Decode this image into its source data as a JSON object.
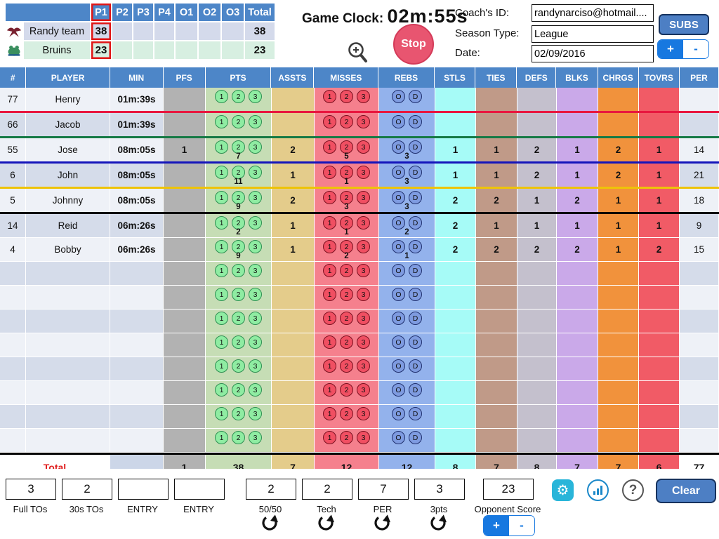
{
  "scoreboard": {
    "period_headers": [
      "P1",
      "P2",
      "P3",
      "P4",
      "O1",
      "O2",
      "O3",
      "Total"
    ],
    "active_period": "P1",
    "teams": [
      {
        "name": "Randy team",
        "icon": "eagle-icon",
        "scores": [
          "38",
          "",
          "",
          "",
          "",
          "",
          "",
          "38"
        ]
      },
      {
        "name": "Bruins",
        "icon": "bruins-icon",
        "scores": [
          "23",
          "",
          "",
          "",
          "",
          "",
          "",
          "23"
        ]
      }
    ]
  },
  "clock": {
    "label": "Game Clock:",
    "time": "02m:55s",
    "stop_label": "Stop"
  },
  "coach_panel": {
    "coach_id_label": "Coach's ID:",
    "coach_id_value": "randynarciso@hotmail....",
    "season_type_label": "Season Type:",
    "season_type_value": "League",
    "date_label": "Date:",
    "date_value": "02/09/2016",
    "subs_label": "SUBS",
    "plus": "+",
    "minus": "-"
  },
  "stats_table": {
    "columns": [
      "#",
      "PLAYER",
      "MIN",
      "PFS",
      "PTS",
      "ASSTS",
      "MISSES",
      "REBS",
      "STLS",
      "TIES",
      "DEFS",
      "BLKS",
      "CHRGS",
      "TOVRS",
      "PER"
    ],
    "pts_buttons": [
      "1",
      "2",
      "3"
    ],
    "misses_buttons": [
      "1",
      "2",
      "3"
    ],
    "rebs_buttons": [
      "O",
      "D"
    ],
    "rows": [
      {
        "num": "77",
        "name": "Henry",
        "min": "01m:39s",
        "pfs": "",
        "pts": "",
        "assts": "",
        "misses": "",
        "rebs": "",
        "stls": "",
        "ties": "",
        "defs": "",
        "blks": "",
        "chrgs": "",
        "tovrs": "",
        "per": "",
        "underline": "#e8173f"
      },
      {
        "num": "66",
        "name": "Jacob",
        "min": "01m:39s",
        "pfs": "",
        "pts": "",
        "assts": "",
        "misses": "",
        "rebs": "",
        "stls": "",
        "ties": "",
        "defs": "",
        "blks": "",
        "chrgs": "",
        "tovrs": "",
        "per": "",
        "underline": "#157a45"
      },
      {
        "num": "55",
        "name": "Jose",
        "min": "08m:05s",
        "pfs": "1",
        "pts": "7",
        "assts": "2",
        "misses": "5",
        "rebs": "3",
        "stls": "1",
        "ties": "1",
        "defs": "2",
        "blks": "1",
        "chrgs": "2",
        "tovrs": "1",
        "per": "14",
        "underline": "#1414bb"
      },
      {
        "num": "6",
        "name": "John",
        "min": "08m:05s",
        "pfs": "",
        "pts": "11",
        "assts": "1",
        "misses": "1",
        "rebs": "3",
        "stls": "1",
        "ties": "1",
        "defs": "2",
        "blks": "1",
        "chrgs": "2",
        "tovrs": "1",
        "per": "21",
        "underline": "#eec308"
      },
      {
        "num": "5",
        "name": "Johnny",
        "min": "08m:05s",
        "pfs": "",
        "pts": "9",
        "assts": "2",
        "misses": "3",
        "rebs": "3",
        "stls": "2",
        "ties": "2",
        "defs": "1",
        "blks": "2",
        "chrgs": "1",
        "tovrs": "1",
        "per": "18",
        "underline": "#000000"
      },
      {
        "num": "14",
        "name": "Reid",
        "min": "06m:26s",
        "pfs": "",
        "pts": "2",
        "assts": "1",
        "misses": "1",
        "rebs": "2",
        "stls": "2",
        "ties": "1",
        "defs": "1",
        "blks": "1",
        "chrgs": "1",
        "tovrs": "1",
        "per": "9",
        "underline": ""
      },
      {
        "num": "4",
        "name": "Bobby",
        "min": "06m:26s",
        "pfs": "",
        "pts": "9",
        "assts": "1",
        "misses": "2",
        "rebs": "1",
        "stls": "2",
        "ties": "2",
        "defs": "2",
        "blks": "2",
        "chrgs": "1",
        "tovrs": "2",
        "per": "15",
        "underline": ""
      },
      {
        "num": "",
        "name": "",
        "min": "",
        "pfs": "",
        "pts": "",
        "assts": "",
        "misses": "",
        "rebs": "",
        "stls": "",
        "ties": "",
        "defs": "",
        "blks": "",
        "chrgs": "",
        "tovrs": "",
        "per": "",
        "underline": ""
      },
      {
        "num": "",
        "name": "",
        "min": "",
        "pfs": "",
        "pts": "",
        "assts": "",
        "misses": "",
        "rebs": "",
        "stls": "",
        "ties": "",
        "defs": "",
        "blks": "",
        "chrgs": "",
        "tovrs": "",
        "per": "",
        "underline": ""
      },
      {
        "num": "",
        "name": "",
        "min": "",
        "pfs": "",
        "pts": "",
        "assts": "",
        "misses": "",
        "rebs": "",
        "stls": "",
        "ties": "",
        "defs": "",
        "blks": "",
        "chrgs": "",
        "tovrs": "",
        "per": "",
        "underline": ""
      },
      {
        "num": "",
        "name": "",
        "min": "",
        "pfs": "",
        "pts": "",
        "assts": "",
        "misses": "",
        "rebs": "",
        "stls": "",
        "ties": "",
        "defs": "",
        "blks": "",
        "chrgs": "",
        "tovrs": "",
        "per": "",
        "underline": ""
      },
      {
        "num": "",
        "name": "",
        "min": "",
        "pfs": "",
        "pts": "",
        "assts": "",
        "misses": "",
        "rebs": "",
        "stls": "",
        "ties": "",
        "defs": "",
        "blks": "",
        "chrgs": "",
        "tovrs": "",
        "per": "",
        "underline": ""
      },
      {
        "num": "",
        "name": "",
        "min": "",
        "pfs": "",
        "pts": "",
        "assts": "",
        "misses": "",
        "rebs": "",
        "stls": "",
        "ties": "",
        "defs": "",
        "blks": "",
        "chrgs": "",
        "tovrs": "",
        "per": "",
        "underline": ""
      },
      {
        "num": "",
        "name": "",
        "min": "",
        "pfs": "",
        "pts": "",
        "assts": "",
        "misses": "",
        "rebs": "",
        "stls": "",
        "ties": "",
        "defs": "",
        "blks": "",
        "chrgs": "",
        "tovrs": "",
        "per": "",
        "underline": ""
      },
      {
        "num": "",
        "name": "",
        "min": "",
        "pfs": "",
        "pts": "",
        "assts": "",
        "misses": "",
        "rebs": "",
        "stls": "",
        "ties": "",
        "defs": "",
        "blks": "",
        "chrgs": "",
        "tovrs": "",
        "per": "",
        "underline": ""
      }
    ],
    "total": {
      "label": "Total",
      "pfs": "1",
      "pts": "38",
      "assts": "7",
      "misses": "12",
      "rebs": "12",
      "stls": "8",
      "ties": "7",
      "defs": "8",
      "blks": "7",
      "chrgs": "7",
      "tovrs": "6",
      "per": "77"
    }
  },
  "bottom_bar": {
    "counters": [
      {
        "value": "3",
        "label": "Full TOs",
        "refresh": false,
        "plusminus": false
      },
      {
        "value": "2",
        "label": "30s TOs",
        "refresh": false,
        "plusminus": false
      },
      {
        "value": "",
        "label": "ENTRY",
        "refresh": false,
        "plusminus": false
      },
      {
        "value": "",
        "label": "ENTRY",
        "refresh": false,
        "plusminus": false
      },
      {
        "value": "2",
        "label": "50/50",
        "refresh": true,
        "plusminus": false
      },
      {
        "value": "2",
        "label": "Tech",
        "refresh": true,
        "plusminus": false
      },
      {
        "value": "7",
        "label": "PER",
        "refresh": true,
        "plusminus": false
      },
      {
        "value": "3",
        "label": "3pts",
        "refresh": true,
        "plusminus": false
      },
      {
        "value": "23",
        "label": "Opponent Score",
        "refresh": false,
        "plusminus": true
      }
    ],
    "plus": "+",
    "minus": "-",
    "clear_label": "Clear",
    "help_glyph": "?"
  },
  "colors": {
    "header_blue": "#4d86c8",
    "button_blue": "#4d7fc4",
    "segmented_blue": "#1778e0",
    "stop_red": "#e85570",
    "gear_cyan": "#29b5d9",
    "chart_blue": "#1a88c9",
    "active_outline_red": "#e01616",
    "total_label_red": "#e02020",
    "row_light": "#eef1f7",
    "row_dark": "#d5dcea",
    "band_pts_green": "#c6ddb5",
    "band_misses_red": "#f5808d",
    "band_rebs_blue": "#93b2ec",
    "band_stls_cyan": "#a6fbf7",
    "band_ties_brown": "#c09a88",
    "band_defs_gray": "#c4c0cd",
    "band_blks_purple": "#caa9e9",
    "band_chrgs_orange": "#f1923c",
    "band_tovrs_red": "#f15b66",
    "underline_red": "#e8173f",
    "underline_green": "#157a45",
    "underline_blue": "#1414bb",
    "underline_yellow": "#eec308",
    "underline_black": "#000000"
  }
}
